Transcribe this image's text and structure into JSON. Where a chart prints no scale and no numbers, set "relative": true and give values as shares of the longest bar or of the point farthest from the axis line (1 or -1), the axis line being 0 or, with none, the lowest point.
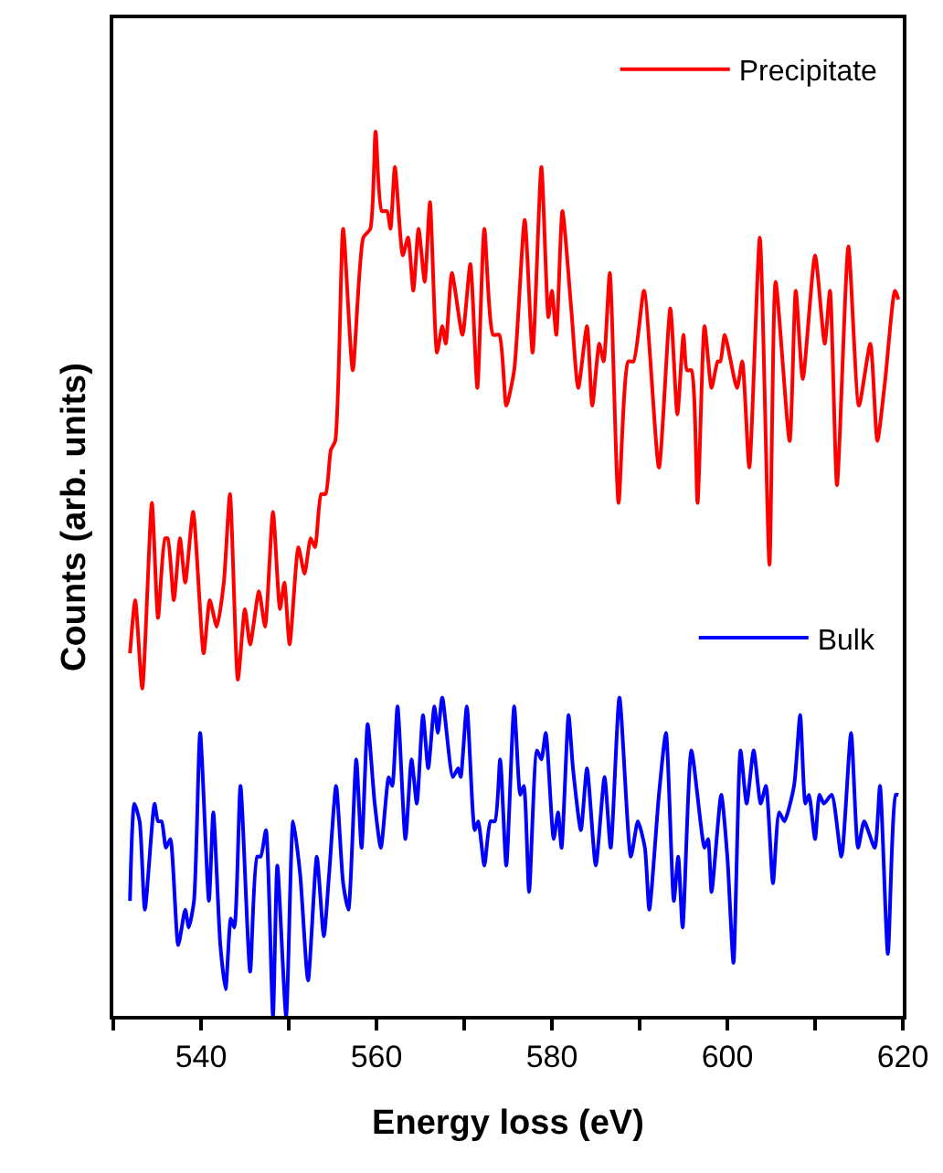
{
  "chart_data": {
    "type": "line",
    "relative": true,
    "xlabel": "Energy loss (eV)",
    "ylabel": "Counts (arb. units)",
    "xlim": [
      530,
      620
    ],
    "xticks": [
      {
        "value": 530,
        "label": null
      },
      540,
      {
        "value": 550,
        "label": null
      },
      560,
      {
        "value": 570,
        "label": null
      },
      580,
      {
        "value": 590,
        "label": null
      },
      600,
      {
        "value": 610,
        "label": null
      },
      620
    ],
    "legend": "right",
    "marker": "none",
    "line_style": "solid",
    "series": [
      {
        "name": "Precipitate",
        "color": "#ff0000",
        "x": [
          531.9,
          532.5,
          533.3,
          534.4,
          535.1,
          535.9,
          536.2,
          536.9,
          537.6,
          538.2,
          539.1,
          540.3,
          541.0,
          541.8,
          542.6,
          543.3,
          544.2,
          545.0,
          545.6,
          546.6,
          547.3,
          548.2,
          549.0,
          549.5,
          550.1,
          551.1,
          551.8,
          552.5,
          553.0,
          553.7,
          554.2,
          554.8,
          555.3,
          556.2,
          557.3,
          558.5,
          559.3,
          559.9,
          560.6,
          561.2,
          561.6,
          562.1,
          563.0,
          563.6,
          564.2,
          564.8,
          565.5,
          566.1,
          566.9,
          567.5,
          567.9,
          568.6,
          569.8,
          570.7,
          571.5,
          572.3,
          573.3,
          574.0,
          574.8,
          575.7,
          576.9,
          577.8,
          578.8,
          579.6,
          580.0,
          580.5,
          581.2,
          582.2,
          583.0,
          584.0,
          584.6,
          585.4,
          585.9,
          586.6,
          587.6,
          588.7,
          589.3,
          590.5,
          592.2,
          593.5,
          594.3,
          595.0,
          595.4,
          595.9,
          596.6,
          597.4,
          598.2,
          598.9,
          599.2,
          599.7,
          601.1,
          601.7,
          602.5,
          603.7,
          604.8,
          605.5,
          607.1,
          607.8,
          608.6,
          610.0,
          611.1,
          611.7,
          612.5,
          613.8,
          615.0,
          616.3,
          617.1,
          618.0,
          619.1,
          619.5
        ],
        "values": [
          0.41,
          0.47,
          0.37,
          0.58,
          0.45,
          0.54,
          0.54,
          0.47,
          0.54,
          0.49,
          0.57,
          0.41,
          0.47,
          0.44,
          0.49,
          0.59,
          0.38,
          0.46,
          0.42,
          0.48,
          0.44,
          0.57,
          0.46,
          0.49,
          0.42,
          0.53,
          0.5,
          0.54,
          0.53,
          0.59,
          0.59,
          0.64,
          0.65,
          0.89,
          0.73,
          0.88,
          0.89,
          1.0,
          0.91,
          0.91,
          0.89,
          0.96,
          0.86,
          0.88,
          0.82,
          0.89,
          0.83,
          0.92,
          0.75,
          0.78,
          0.76,
          0.84,
          0.77,
          0.85,
          0.71,
          0.89,
          0.77,
          0.77,
          0.69,
          0.73,
          0.9,
          0.75,
          0.96,
          0.79,
          0.82,
          0.77,
          0.91,
          0.8,
          0.71,
          0.78,
          0.69,
          0.76,
          0.74,
          0.84,
          0.58,
          0.74,
          0.74,
          0.82,
          0.62,
          0.8,
          0.68,
          0.77,
          0.73,
          0.73,
          0.58,
          0.78,
          0.71,
          0.74,
          0.74,
          0.77,
          0.71,
          0.74,
          0.62,
          0.88,
          0.51,
          0.83,
          0.65,
          0.82,
          0.72,
          0.86,
          0.76,
          0.82,
          0.6,
          0.87,
          0.69,
          0.76,
          0.65,
          0.72,
          0.82,
          0.81
        ]
      },
      {
        "name": "Bulk",
        "color": "#0000ff",
        "x": [
          531.9,
          532.4,
          533.0,
          533.6,
          534.7,
          535.1,
          535.5,
          536.0,
          536.5,
          537.4,
          538.2,
          538.6,
          539.2,
          539.9,
          540.9,
          541.4,
          542.2,
          542.8,
          543.4,
          543.8,
          544.5,
          545.6,
          546.4,
          546.8,
          547.4,
          548.2,
          548.7,
          549.7,
          550.5,
          551.3,
          552.2,
          553.2,
          554.0,
          554.6,
          555.4,
          556.2,
          556.8,
          557.7,
          558.3,
          559.0,
          559.8,
          560.5,
          561.4,
          561.8,
          562.4,
          563.3,
          564.0,
          564.6,
          565.3,
          565.9,
          566.6,
          567.0,
          567.5,
          568.7,
          569.3,
          569.6,
          570.3,
          571.2,
          571.6,
          572.3,
          573.0,
          573.5,
          574.1,
          574.8,
          575.7,
          576.4,
          576.8,
          577.4,
          578.3,
          578.8,
          579.3,
          580.2,
          580.7,
          581.1,
          581.9,
          582.4,
          583.3,
          584.0,
          585.0,
          586.0,
          586.7,
          587.7,
          589.0,
          589.8,
          590.6,
          591.1,
          592.2,
          593.0,
          593.9,
          594.4,
          594.9,
          595.9,
          597.4,
          597.8,
          598.2,
          599.3,
          600.0,
          600.7,
          601.5,
          602.2,
          603.0,
          603.8,
          604.4,
          605.2,
          605.9,
          606.5,
          607.6,
          608.3,
          608.9,
          609.3,
          610.0,
          610.5,
          611.0,
          611.9,
          613.0,
          614.1,
          614.9,
          615.6,
          616.8,
          617.4,
          618.3,
          619.2,
          619.5
        ],
        "values": [
          0.13,
          0.24,
          0.22,
          0.12,
          0.24,
          0.22,
          0.22,
          0.19,
          0.2,
          0.08,
          0.12,
          0.1,
          0.13,
          0.32,
          0.13,
          0.23,
          0.08,
          0.03,
          0.11,
          0.1,
          0.26,
          0.05,
          0.18,
          0.18,
          0.21,
          0.0,
          0.17,
          0.0,
          0.22,
          0.16,
          0.04,
          0.18,
          0.09,
          0.16,
          0.26,
          0.15,
          0.12,
          0.29,
          0.19,
          0.33,
          0.24,
          0.19,
          0.27,
          0.26,
          0.35,
          0.2,
          0.29,
          0.24,
          0.34,
          0.28,
          0.35,
          0.32,
          0.36,
          0.27,
          0.28,
          0.27,
          0.35,
          0.21,
          0.22,
          0.17,
          0.22,
          0.22,
          0.29,
          0.17,
          0.35,
          0.25,
          0.26,
          0.14,
          0.3,
          0.29,
          0.32,
          0.2,
          0.23,
          0.19,
          0.34,
          0.28,
          0.21,
          0.28,
          0.17,
          0.27,
          0.19,
          0.36,
          0.18,
          0.22,
          0.19,
          0.12,
          0.25,
          0.32,
          0.13,
          0.18,
          0.1,
          0.3,
          0.19,
          0.2,
          0.14,
          0.25,
          0.18,
          0.06,
          0.3,
          0.24,
          0.3,
          0.24,
          0.26,
          0.15,
          0.23,
          0.22,
          0.26,
          0.34,
          0.24,
          0.25,
          0.2,
          0.25,
          0.24,
          0.25,
          0.18,
          0.32,
          0.19,
          0.22,
          0.19,
          0.26,
          0.07,
          0.25,
          0.25
        ]
      }
    ]
  }
}
